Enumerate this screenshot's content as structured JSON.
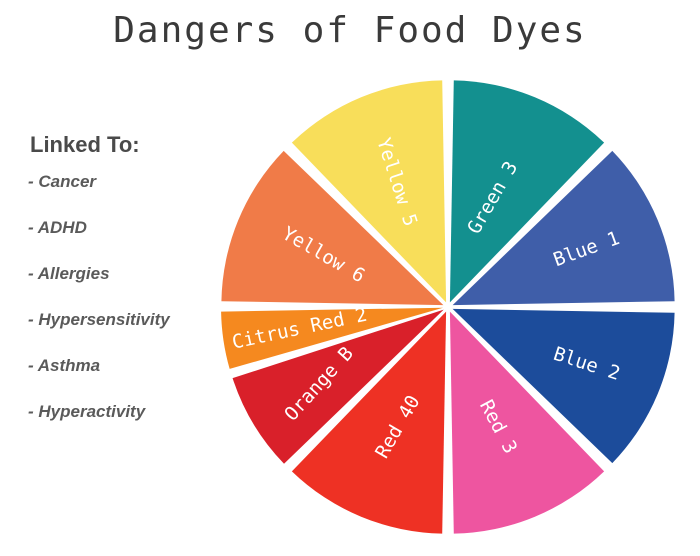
{
  "title": "Dangers of Food Dyes",
  "linked": {
    "heading": "Linked To:",
    "items": [
      "- Cancer",
      "- ADHD",
      "- Allergies",
      "- Hypersensitivity",
      "- Asthma",
      "- Hyperactivity"
    ]
  },
  "wheel": {
    "slices": [
      {
        "label": "Green 3",
        "color": "#13908f"
      },
      {
        "label": "Blue 1",
        "color": "#3f5ea9"
      },
      {
        "label": "Blue 2",
        "color": "#1c4c9b"
      },
      {
        "label": "Red 3",
        "color": "#ee55a0"
      },
      {
        "label": "Red 40",
        "color": "#ee3124"
      },
      {
        "label": "Orange B",
        "color": "#d9202a"
      },
      {
        "label": "Citrus Red 2",
        "color": "#f5891f"
      },
      {
        "label": "Yellow 6",
        "color": "#f07b48"
      },
      {
        "label": "Yellow 5",
        "color": "#f8de5a"
      }
    ]
  }
}
